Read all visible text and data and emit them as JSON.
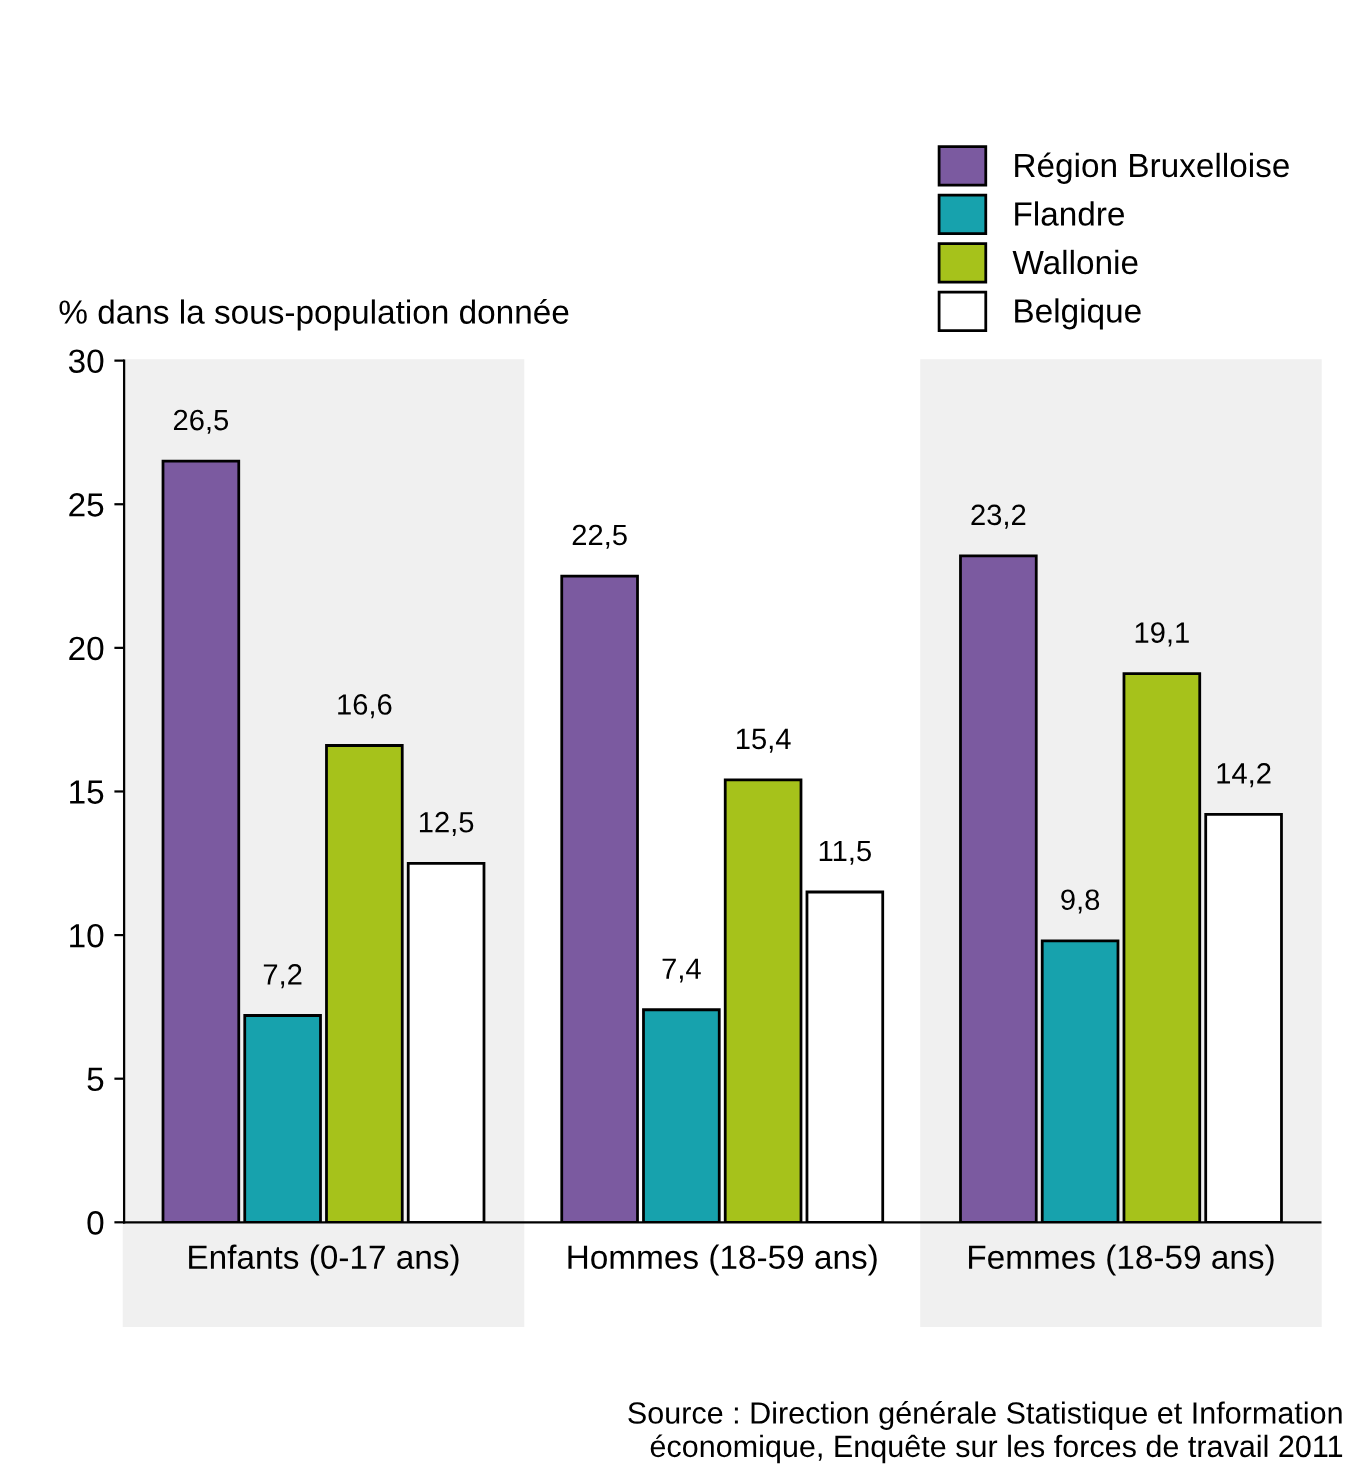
{
  "chart_data": {
    "type": "bar",
    "ylabel": "% dans la sous-population donnée",
    "categories": [
      "Enfants (0-17 ans)",
      "Hommes (18-59 ans)",
      "Femmes (18-59 ans)"
    ],
    "series": [
      {
        "name": "Région Bruxelloise",
        "color": "#7b5aa0",
        "values": [
          26.5,
          22.5,
          23.2
        ],
        "value_labels": [
          "26,5",
          "22,5",
          "23,2"
        ]
      },
      {
        "name": "Flandre",
        "color": "#17a2ad",
        "values": [
          7.2,
          7.4,
          9.8
        ],
        "value_labels": [
          "7,2",
          "7,4",
          "9,8"
        ]
      },
      {
        "name": "Wallonie",
        "color": "#a6c21b",
        "values": [
          16.6,
          15.4,
          19.1
        ],
        "value_labels": [
          "16,6",
          "15,4",
          "19,1"
        ]
      },
      {
        "name": "Belgique",
        "color": "#ffffff",
        "values": [
          12.5,
          11.5,
          14.2
        ],
        "value_labels": [
          "12,5",
          "11,5",
          "14,2"
        ]
      }
    ],
    "ylim": [
      0,
      30
    ],
    "yticks": [
      0,
      5,
      10,
      15,
      20,
      25,
      30
    ],
    "grid": false,
    "legend": "top right",
    "annotations": [
      "Source : Direction générale Statistique et Information\néconomique, Enquête sur les forces de travail 2011"
    ]
  }
}
